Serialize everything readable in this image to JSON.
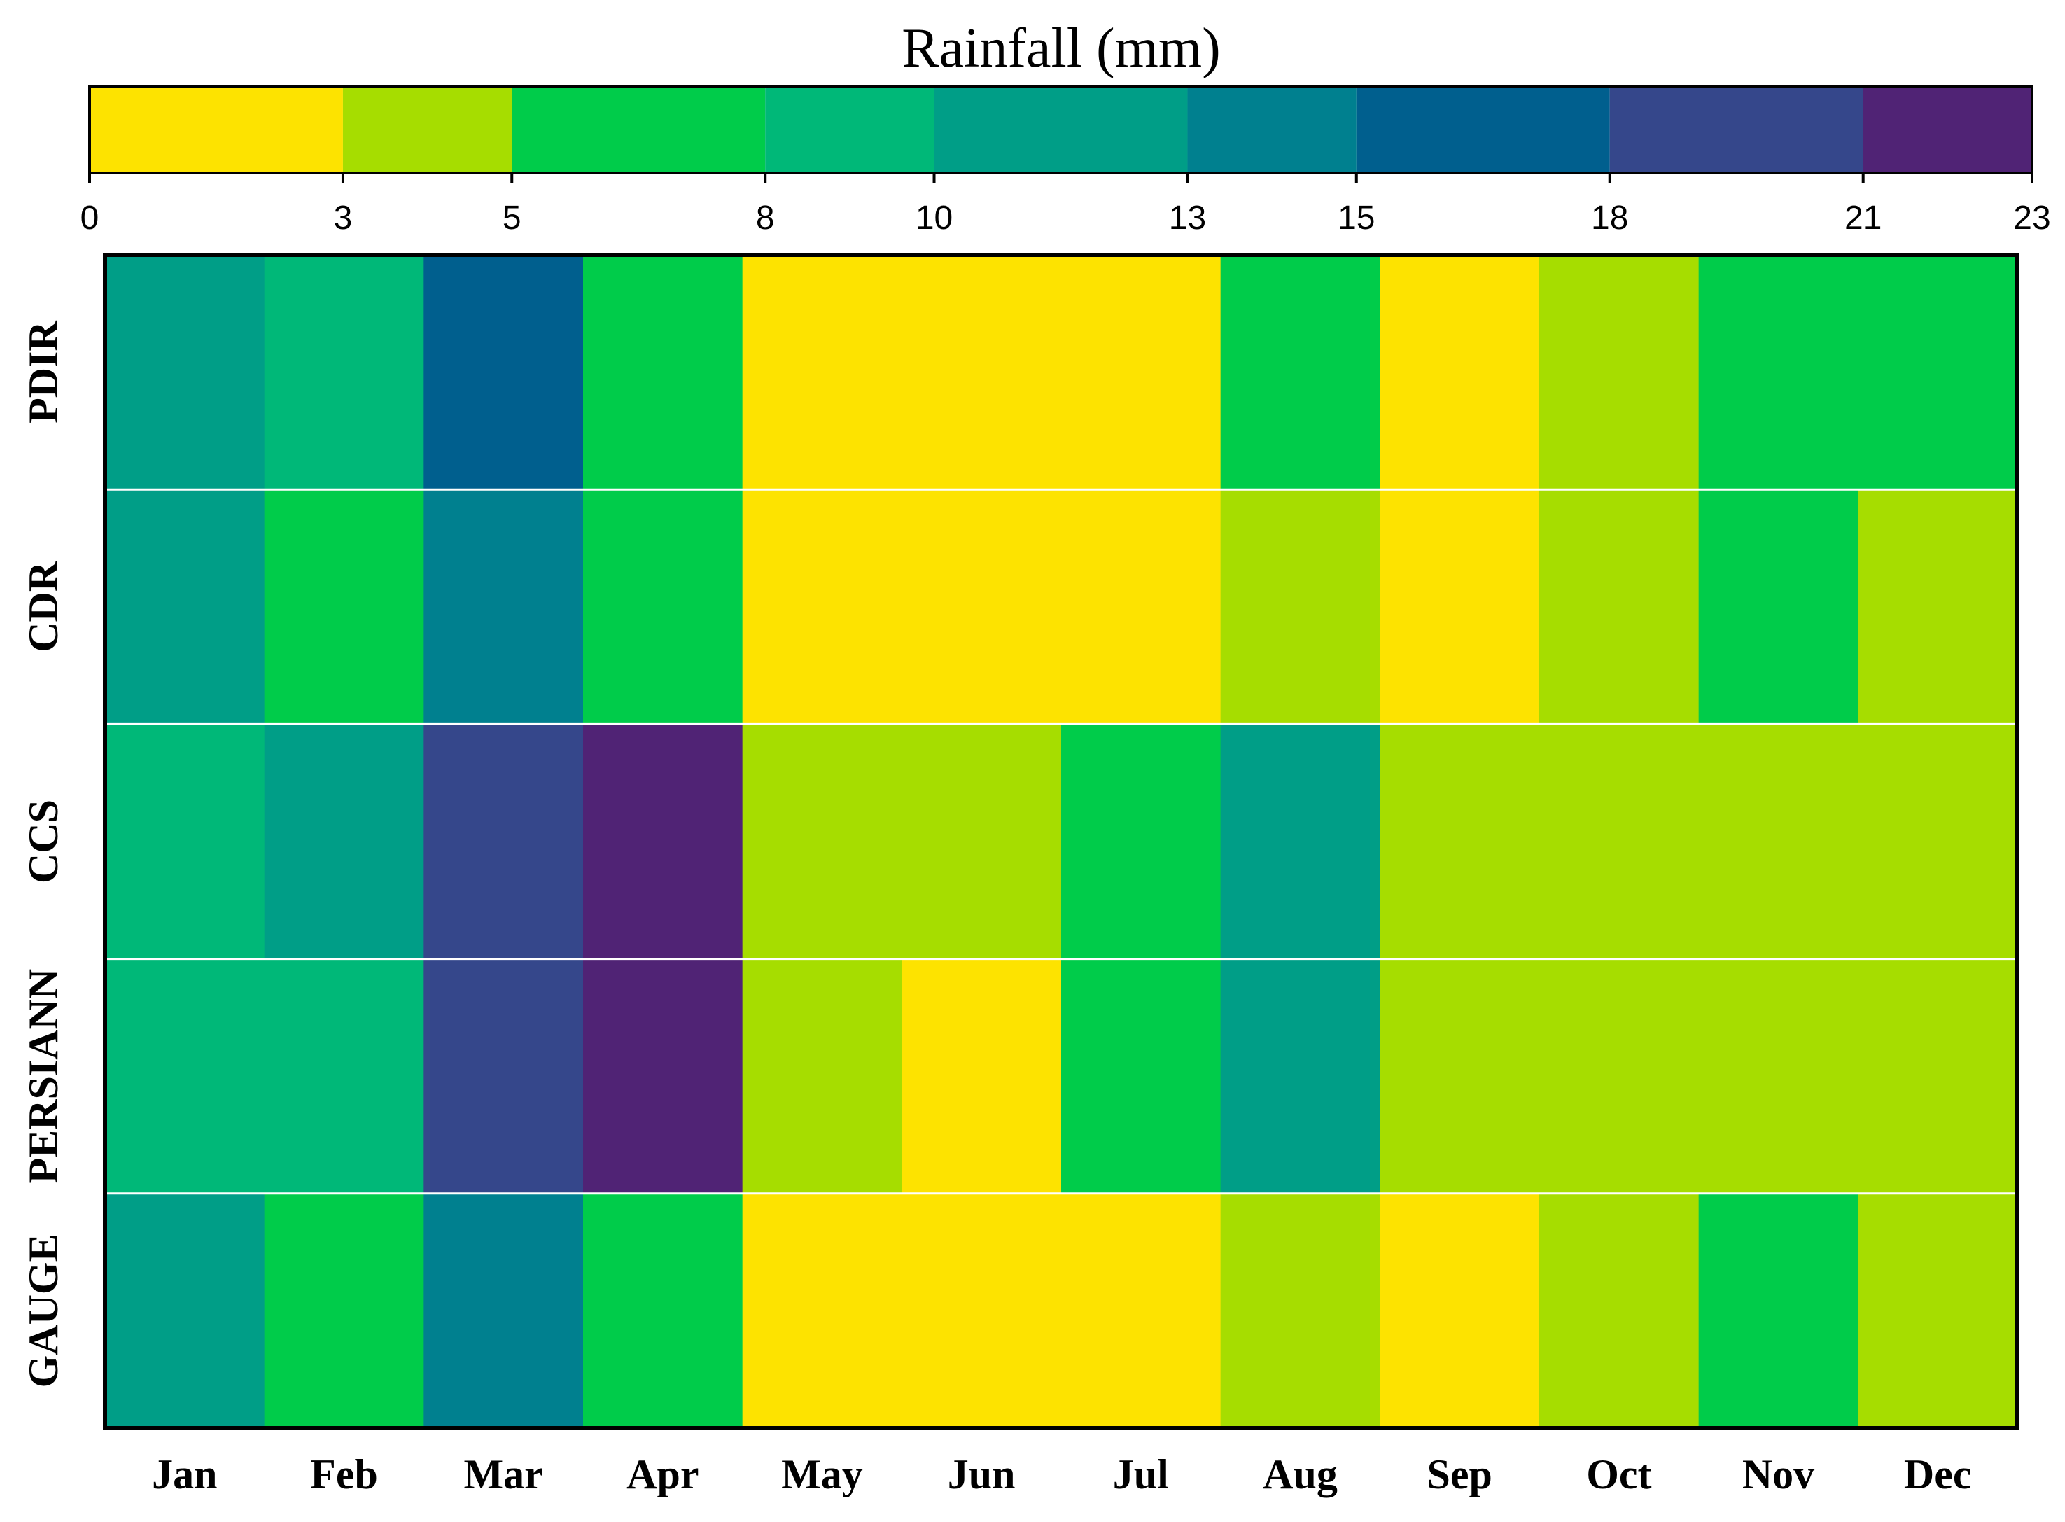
{
  "chart_data": {
    "type": "heatmap",
    "colorbar": {
      "title": "Rainfall (mm)",
      "ticks": [
        0,
        3,
        5,
        8,
        10,
        13,
        15,
        18,
        21,
        23
      ],
      "colors": [
        "#FDE300",
        "#A6DD00",
        "#00CC4A",
        "#00B878",
        "#009E87",
        "#00808F",
        "#005F8E",
        "#35478B",
        "#502375"
      ]
    },
    "columns": [
      "Jan",
      "Feb",
      "Mar",
      "Apr",
      "May",
      "Jun",
      "Jul",
      "Aug",
      "Sep",
      "Oct",
      "Nov",
      "Dec"
    ],
    "rows": [
      "PDIR",
      "CDR",
      "CCS",
      "PERSIANN",
      "GAUGE"
    ],
    "values": [
      [
        11.5,
        9,
        16.5,
        6.5,
        1.5,
        1.5,
        1.5,
        6.5,
        1.5,
        4,
        6.5,
        6.5
      ],
      [
        11.5,
        6.5,
        14,
        6.5,
        1.5,
        1.5,
        1.5,
        4,
        1.5,
        4,
        6.5,
        4
      ],
      [
        9,
        11.5,
        19.5,
        22,
        4,
        4,
        6.5,
        11.5,
        4,
        4,
        4,
        4
      ],
      [
        9,
        9,
        19.5,
        22,
        4,
        1.5,
        6.5,
        11.5,
        4,
        4,
        4,
        4
      ],
      [
        11.5,
        6.5,
        14,
        6.5,
        1.5,
        1.5,
        1.5,
        4,
        1.5,
        4,
        6.5,
        4
      ]
    ]
  }
}
